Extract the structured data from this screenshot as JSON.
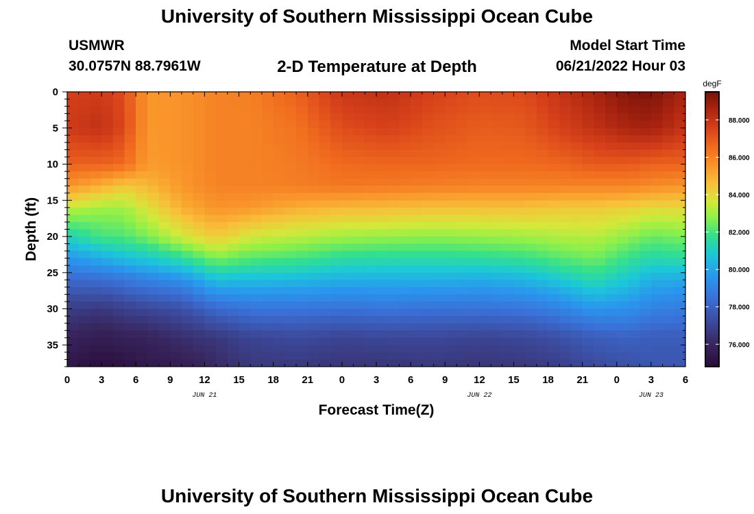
{
  "header": {
    "title": "University of Southern Mississippi Ocean Cube",
    "station": "USMWR",
    "coordinates": "30.0757N  88.7961W",
    "subtitle": "2-D Temperature at Depth",
    "model_start_label": "Model Start Time",
    "model_start_value": "06/21/2022 Hour 03"
  },
  "footer": {
    "title": "University of Southern Mississippi Ocean Cube"
  },
  "chart_data": {
    "type": "heatmap",
    "title": "2-D Temperature at Depth",
    "xlabel": "Forecast Time(Z)",
    "ylabel": "Depth (ft)",
    "x_unit": "forecast hour",
    "x_range": [
      0,
      54
    ],
    "y_range": [
      0,
      38
    ],
    "y_inverted": true,
    "x_ticks": [
      {
        "hour": 0,
        "label": "0"
      },
      {
        "hour": 3,
        "label": "3"
      },
      {
        "hour": 6,
        "label": "6"
      },
      {
        "hour": 9,
        "label": "9"
      },
      {
        "hour": 12,
        "label": "12"
      },
      {
        "hour": 15,
        "label": "15"
      },
      {
        "hour": 18,
        "label": "18"
      },
      {
        "hour": 21,
        "label": "21"
      },
      {
        "hour": 24,
        "label": "0"
      },
      {
        "hour": 27,
        "label": "3"
      },
      {
        "hour": 30,
        "label": "6"
      },
      {
        "hour": 33,
        "label": "9"
      },
      {
        "hour": 36,
        "label": "12"
      },
      {
        "hour": 39,
        "label": "15"
      },
      {
        "hour": 42,
        "label": "18"
      },
      {
        "hour": 45,
        "label": "21"
      },
      {
        "hour": 48,
        "label": "0"
      },
      {
        "hour": 51,
        "label": "3"
      },
      {
        "hour": 54,
        "label": "6"
      }
    ],
    "date_labels": [
      {
        "hour": 12,
        "label": "JUN 21"
      },
      {
        "hour": 36,
        "label": "JUN 22"
      },
      {
        "hour": 51,
        "label": "JUN 23"
      }
    ],
    "y_ticks": [
      0,
      5,
      10,
      15,
      20,
      25,
      30,
      35
    ],
    "colorbar": {
      "unit": "degF",
      "range": [
        74.8,
        89.5
      ],
      "ticks": [
        {
          "value": 76,
          "label": "76.000"
        },
        {
          "value": 78,
          "label": "78.000"
        },
        {
          "value": 80,
          "label": "80.000"
        },
        {
          "value": 82,
          "label": "82.000"
        },
        {
          "value": 84,
          "label": "84.000"
        },
        {
          "value": 86,
          "label": "86.000"
        },
        {
          "value": 88,
          "label": "88.000"
        }
      ],
      "colors": [
        {
          "value": 74.8,
          "color": "#2a0c3a"
        },
        {
          "value": 76.0,
          "color": "#38265e"
        },
        {
          "value": 77.2,
          "color": "#3c4a9c"
        },
        {
          "value": 78.4,
          "color": "#3a6fd6"
        },
        {
          "value": 79.6,
          "color": "#2a96ee"
        },
        {
          "value": 80.8,
          "color": "#1cc8d8"
        },
        {
          "value": 81.8,
          "color": "#34e08c"
        },
        {
          "value": 82.8,
          "color": "#90f048"
        },
        {
          "value": 83.6,
          "color": "#d4e83a"
        },
        {
          "value": 84.6,
          "color": "#f8c039"
        },
        {
          "value": 85.6,
          "color": "#f9932a"
        },
        {
          "value": 86.6,
          "color": "#f06a1e"
        },
        {
          "value": 87.6,
          "color": "#d6401a"
        },
        {
          "value": 88.6,
          "color": "#aa2410"
        },
        {
          "value": 89.5,
          "color": "#78120a"
        }
      ]
    },
    "temperature_profiles": {
      "depths_ft": [
        0,
        5,
        10,
        13,
        16,
        20,
        23,
        26,
        30,
        34,
        38
      ],
      "columns": [
        {
          "hour": 0,
          "temps": [
            87.6,
            87.8,
            86.8,
            85.6,
            83.4,
            81.2,
            79.6,
            78.2,
            76.8,
            75.9,
            75.3
          ]
        },
        {
          "hour": 3,
          "temps": [
            87.8,
            88.1,
            86.8,
            85.0,
            83.0,
            82.0,
            80.2,
            78.3,
            76.6,
            75.6,
            74.9
          ]
        },
        {
          "hour": 5,
          "temps": [
            87.3,
            87.4,
            86.6,
            84.4,
            83.0,
            82.1,
            80.6,
            78.6,
            76.9,
            75.8,
            75.1
          ]
        },
        {
          "hour": 7,
          "temps": [
            85.5,
            85.5,
            85.4,
            84.8,
            83.8,
            82.6,
            80.9,
            79.0,
            77.1,
            75.9,
            75.4
          ]
        },
        {
          "hour": 10,
          "temps": [
            85.6,
            85.6,
            85.6,
            85.5,
            85.0,
            83.6,
            81.6,
            79.4,
            77.4,
            76.3,
            75.6
          ]
        },
        {
          "hour": 13,
          "temps": [
            86.0,
            86.0,
            86.0,
            86.0,
            85.6,
            84.4,
            82.6,
            80.6,
            78.2,
            76.6,
            76.1
          ]
        },
        {
          "hour": 16,
          "temps": [
            86.1,
            86.0,
            86.0,
            86.0,
            85.5,
            83.6,
            82.2,
            80.5,
            78.6,
            77.0,
            76.6
          ]
        },
        {
          "hour": 20,
          "temps": [
            86.8,
            86.4,
            86.2,
            86.1,
            85.0,
            83.3,
            82.0,
            80.4,
            78.6,
            77.2,
            76.6
          ]
        },
        {
          "hour": 24,
          "temps": [
            87.9,
            87.3,
            86.6,
            86.3,
            84.8,
            83.0,
            81.6,
            80.2,
            78.5,
            77.0,
            76.5
          ]
        },
        {
          "hour": 28,
          "temps": [
            88.1,
            87.6,
            86.7,
            86.2,
            84.7,
            82.9,
            81.5,
            80.2,
            78.6,
            77.1,
            76.5
          ]
        },
        {
          "hour": 32,
          "temps": [
            87.6,
            87.2,
            86.7,
            86.1,
            84.6,
            82.8,
            81.5,
            80.2,
            78.5,
            77.1,
            76.6
          ]
        },
        {
          "hour": 36,
          "temps": [
            87.3,
            86.9,
            86.6,
            86.0,
            84.6,
            82.9,
            81.6,
            80.1,
            78.5,
            77.0,
            76.5
          ]
        },
        {
          "hour": 40,
          "temps": [
            87.4,
            87.0,
            86.6,
            86.0,
            84.6,
            83.0,
            81.8,
            80.3,
            78.6,
            77.1,
            76.6
          ]
        },
        {
          "hour": 43,
          "temps": [
            88.0,
            87.6,
            86.7,
            86.0,
            84.4,
            83.2,
            82.2,
            80.8,
            79.0,
            77.4,
            76.8
          ]
        },
        {
          "hour": 46,
          "temps": [
            88.6,
            88.1,
            87.0,
            86.0,
            84.4,
            83.3,
            82.5,
            81.4,
            79.6,
            77.8,
            77.2
          ]
        },
        {
          "hour": 49,
          "temps": [
            89.3,
            88.6,
            87.0,
            86.0,
            84.2,
            82.8,
            81.8,
            80.8,
            79.4,
            78.0,
            77.4
          ]
        },
        {
          "hour": 51,
          "temps": [
            89.4,
            88.7,
            86.8,
            85.8,
            84.0,
            82.4,
            81.4,
            80.2,
            79.0,
            77.8,
            77.6
          ]
        },
        {
          "hour": 54,
          "temps": [
            88.6,
            88.0,
            86.8,
            85.6,
            84.0,
            82.6,
            81.6,
            80.0,
            78.8,
            77.8,
            77.6
          ]
        }
      ]
    }
  }
}
